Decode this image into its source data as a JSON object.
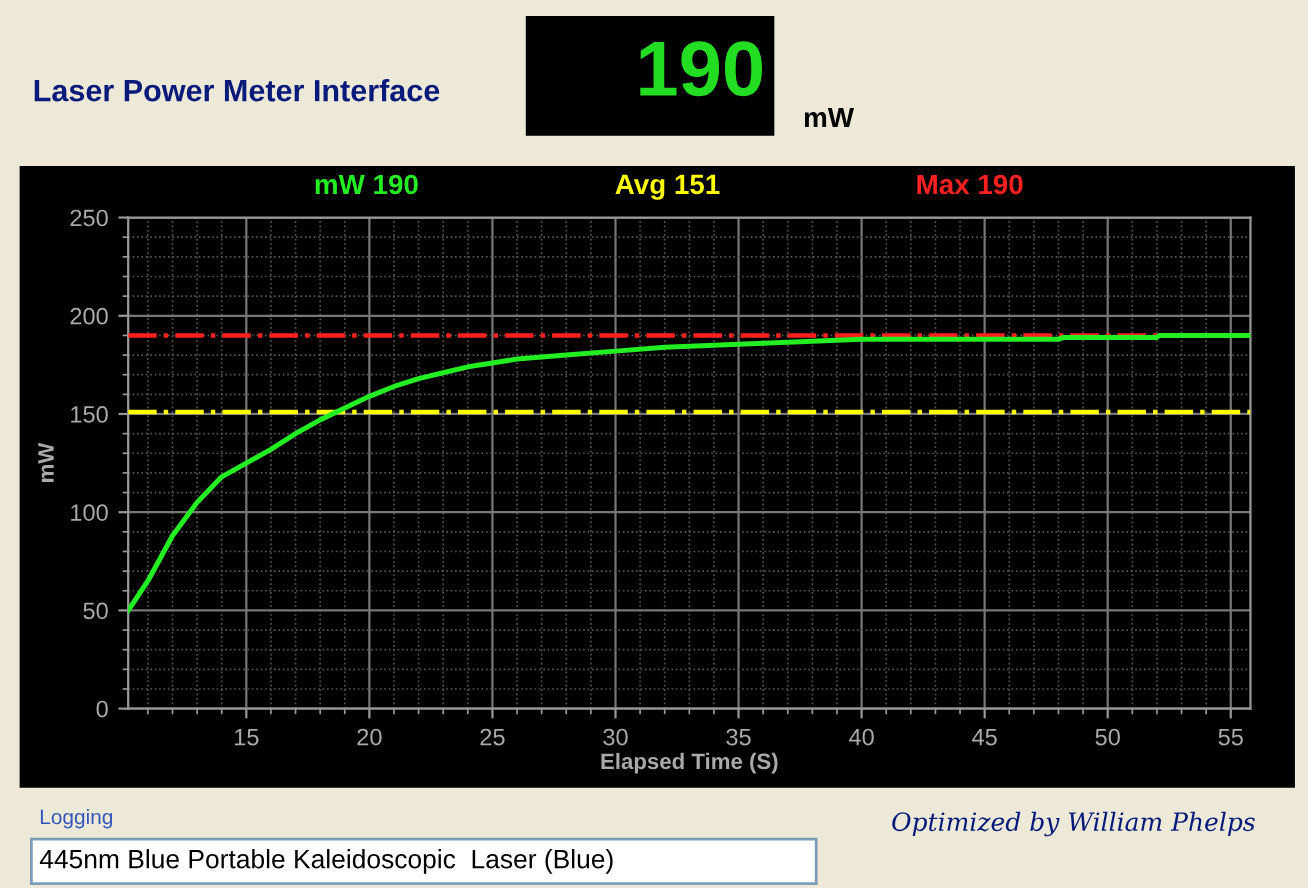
{
  "chart_data": {
    "type": "line",
    "title": "Laser Power Meter Interface",
    "xlabel": "Elapsed Time (S)",
    "ylabel": "mW",
    "series": [
      {
        "name": "mW 190",
        "color": "#22ee22",
        "x": [
          10.2,
          11,
          12,
          13,
          14,
          15,
          16,
          17,
          18,
          19,
          20,
          21,
          22,
          23,
          24,
          25,
          26,
          27,
          28,
          30,
          32,
          34,
          36,
          38,
          40,
          44,
          48,
          48.2,
          52,
          52.1,
          55.8
        ],
        "values": [
          50,
          65,
          88,
          105,
          118,
          125,
          132,
          140,
          147,
          153,
          159,
          164,
          168,
          171,
          174,
          176,
          178,
          179,
          180,
          182,
          184,
          185,
          186,
          187,
          188,
          188,
          188,
          189,
          189,
          190,
          190
        ]
      }
    ],
    "ref_lines": [
      {
        "axis": "y",
        "value": 151,
        "label": "Avg 151",
        "color": "#ffff00",
        "line_style": "dashdot"
      },
      {
        "axis": "y",
        "value": 190,
        "label": "Max 190",
        "color": "#ff2020",
        "line_style": "dashdot"
      }
    ],
    "xlim": [
      10.2,
      55.8
    ],
    "ylim": [
      0,
      250
    ],
    "xticks": [
      15,
      20,
      25,
      30,
      35,
      40,
      45,
      50,
      55
    ],
    "yticks": [
      0,
      50,
      100,
      150,
      200,
      250
    ],
    "grid": true,
    "marker": "none",
    "line_style": "solid",
    "annotations": [
      "190",
      "mW",
      "Logging",
      "445nm Blue Portable Kaleidoscopic  Laser (Blue)",
      "Optimized by William Phelps"
    ]
  }
}
